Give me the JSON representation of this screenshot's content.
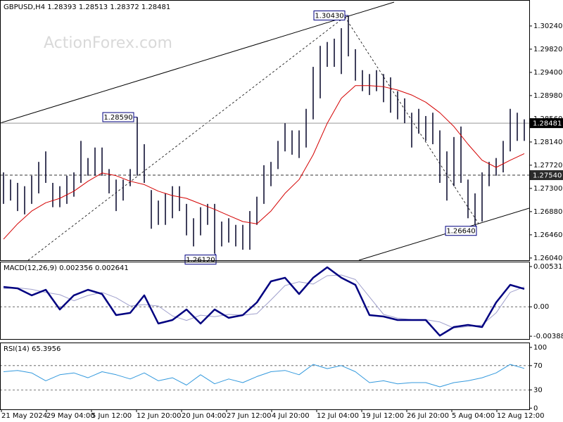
{
  "chart_data": [
    {
      "type": "ohlc",
      "title": "GBPUSD,H4",
      "quote": {
        "open": 1.28393,
        "high": 1.28513,
        "low": 1.28372,
        "close": 1.28481
      },
      "watermark": "ActionForex.com",
      "color": "#111133",
      "ylim": [
        1.26,
        1.3071
      ],
      "yticks": [
        {
          "value": 1.3024,
          "label": "1.30240"
        },
        {
          "value": 1.2982,
          "label": "1.29820"
        },
        {
          "value": 1.294,
          "label": "1.29400"
        },
        {
          "value": 1.2898,
          "label": "1.28980"
        },
        {
          "value": 1.2856,
          "label": "1.28560"
        },
        {
          "value": 1.2814,
          "label": "1.28140"
        },
        {
          "value": 1.2772,
          "label": "1.27720"
        },
        {
          "value": 1.273,
          "label": "1.27300"
        },
        {
          "value": 1.2688,
          "label": "1.26880"
        },
        {
          "value": 1.2646,
          "label": "1.26460"
        },
        {
          "value": 1.2604,
          "label": "1.26040"
        }
      ],
      "level": {
        "value": 1.2754,
        "label": "1.27540"
      },
      "high": [
        1.2759,
        1.2746,
        1.274,
        1.2734,
        1.2753,
        1.2778,
        1.2797,
        1.274,
        1.2734,
        1.2753,
        1.2759,
        1.2816,
        1.2785,
        1.2804,
        1.2804,
        1.2765,
        1.2746,
        1.2746,
        1.2765,
        1.2859,
        1.281,
        1.2727,
        1.2708,
        1.2721,
        1.2734,
        1.2734,
        1.2702,
        1.2676,
        1.2696,
        1.2702,
        1.2702,
        1.267,
        1.2676,
        1.2664,
        1.2664,
        1.2689,
        1.2715,
        1.2772,
        1.2778,
        1.2816,
        1.2848,
        1.2835,
        1.2835,
        1.2874,
        1.295,
        1.2988,
        1.2995,
        1.3001,
        1.302,
        1.3043,
        1.2982,
        1.2944,
        1.2937,
        1.2944,
        1.2937,
        1.2931,
        1.2906,
        1.2893,
        1.2867,
        1.2874,
        1.2861,
        1.2867,
        1.2835,
        1.2797,
        1.2823,
        1.2842,
        1.2746,
        1.2721,
        1.2759,
        1.2778,
        1.2785,
        1.2816,
        1.2874,
        1.2867,
        1.2855
      ],
      "low": [
        1.2702,
        1.2708,
        1.2689,
        1.2683,
        1.2702,
        1.2721,
        1.274,
        1.2696,
        1.2696,
        1.2702,
        1.2715,
        1.274,
        1.2753,
        1.2753,
        1.2753,
        1.2721,
        1.2689,
        1.2708,
        1.2734,
        1.2753,
        1.274,
        1.2657,
        1.2664,
        1.2664,
        1.2676,
        1.2689,
        1.2645,
        1.2625,
        1.2645,
        1.2664,
        1.2612,
        1.2625,
        1.2632,
        1.2625,
        1.2619,
        1.2619,
        1.2664,
        1.2702,
        1.2734,
        1.2765,
        1.2797,
        1.2791,
        1.2785,
        1.2804,
        1.2855,
        1.2893,
        1.295,
        1.295,
        1.2937,
        1.2969,
        1.2925,
        1.2906,
        1.2899,
        1.2906,
        1.2886,
        1.2867,
        1.2855,
        1.2848,
        1.2804,
        1.2829,
        1.2816,
        1.281,
        1.274,
        1.2708,
        1.2734,
        1.274,
        1.2676,
        1.2664,
        1.267,
        1.2734,
        1.2753,
        1.2759,
        1.2797,
        1.2816,
        1.2816
      ],
      "ma_color": "#d40000",
      "ma_values": [
        1.2638,
        1.2666,
        1.2689,
        1.2704,
        1.2712,
        1.2725,
        1.2743,
        1.2758,
        1.2753,
        1.2743,
        1.2737,
        1.2725,
        1.2717,
        1.2712,
        1.2702,
        1.2692,
        1.2681,
        1.267,
        1.2666,
        1.2689,
        1.2721,
        1.2746,
        1.2791,
        1.2848,
        1.2893,
        1.2916,
        1.2916,
        1.2914,
        1.2908,
        1.2899,
        1.2886,
        1.2867,
        1.2842,
        1.281,
        1.2781,
        1.2768,
        1.2781,
        1.2793
      ],
      "annotations": [
        {
          "value": 1.3043,
          "label": "1.30430",
          "at": "high"
        },
        {
          "value": 1.2859,
          "label": "1.28590",
          "at": "high"
        },
        {
          "value": 1.2612,
          "label": "1.26120",
          "at": "low"
        },
        {
          "value": 1.2664,
          "label": "1.26640",
          "at": "low"
        }
      ]
    },
    {
      "type": "line",
      "title": "MACD(12,26,9)",
      "ylim": [
        -0.00425,
        0.00596
      ],
      "yticks": [
        0.005314,
        {
          "value": 0,
          "label": "0.00"
        },
        -0.003885
      ],
      "series": [
        {
          "color": "#000080",
          "width": 2.5,
          "values": [
            0.00262,
            0.00243,
            0.00151,
            0.00225,
            -0.00035,
            0.00151,
            0.00225,
            0.00169,
            -0.00109,
            -0.00081,
            0.00151,
            -0.00221,
            -0.00174,
            -0.00035,
            -0.00221,
            -0.00035,
            -0.00146,
            -0.00109,
            0.00058,
            0.00336,
            0.00383,
            0.00169,
            0.00383,
            0.00522,
            0.00383,
            0.0029,
            -0.00109,
            -0.00128,
            -0.00174,
            -0.00174,
            -0.00174,
            -0.0038,
            -0.00267,
            -0.00239,
            -0.00267,
            0.00058,
            0.0029,
            0.002356
          ]
        },
        {
          "color": "#a0a0cc",
          "width": 1,
          "values": [
            0.0024,
            0.0025,
            0.0023,
            0.0019,
            0.0016,
            0.0008,
            0.0015,
            0.0019,
            0.0012,
            0.0001,
            0.0003,
            0.0001,
            -0.0012,
            -0.0018,
            -0.0011,
            -0.0013,
            -0.001,
            -0.0011,
            -0.0009,
            0.0009,
            0.0028,
            0.0033,
            0.003,
            0.0041,
            0.0042,
            0.0036,
            0.0013,
            -0.001,
            -0.0015,
            -0.0017,
            -0.0017,
            -0.002,
            -0.0028,
            -0.0026,
            -0.0024,
            -0.0008,
            0.0019,
            0.002641
          ]
        }
      ]
    },
    {
      "type": "line",
      "title": "RSI(14)",
      "ylim": [
        -2,
        108
      ],
      "yticks": [
        100,
        70,
        30,
        0
      ],
      "series": [
        {
          "color": "#3399dd",
          "width": 1,
          "values": [
            60,
            62,
            58,
            45,
            55,
            58,
            50,
            60,
            55,
            48,
            58,
            45,
            50,
            38,
            55,
            40,
            48,
            42,
            52,
            60,
            62,
            55,
            72,
            65,
            70,
            60,
            42,
            45,
            40,
            42,
            42,
            35,
            42,
            45,
            50,
            58,
            72,
            65.3956
          ]
        }
      ]
    }
  ],
  "x_axis": {
    "labels": [
      "21 May 2024",
      "29 May 04:00",
      "5 Jun 12:00",
      "12 Jun 20:00",
      "20 Jun 04:00",
      "27 Jun 12:00",
      "4 Jul 20:00",
      "12 Jul 04:00",
      "19 Jul 12:00",
      "26 Jul 20:00",
      "5 Aug 04:00",
      "12 Aug 12:00"
    ]
  }
}
